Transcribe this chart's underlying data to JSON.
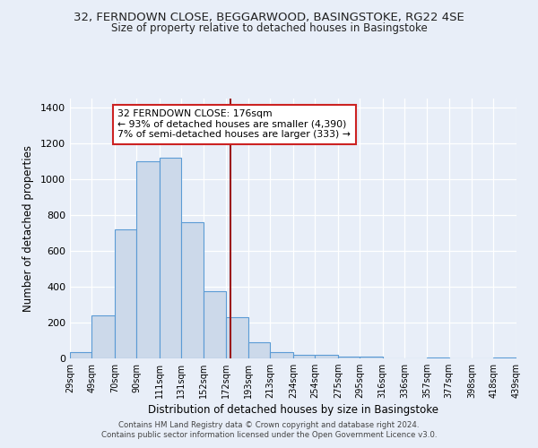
{
  "title_line1": "32, FERNDOWN CLOSE, BEGGARWOOD, BASINGSTOKE, RG22 4SE",
  "title_line2": "Size of property relative to detached houses in Basingstoke",
  "xlabel": "Distribution of detached houses by size in Basingstoke",
  "ylabel": "Number of detached properties",
  "bin_labels": [
    "29sqm",
    "49sqm",
    "70sqm",
    "90sqm",
    "111sqm",
    "131sqm",
    "152sqm",
    "172sqm",
    "193sqm",
    "213sqm",
    "234sqm",
    "254sqm",
    "275sqm",
    "295sqm",
    "316sqm",
    "336sqm",
    "357sqm",
    "377sqm",
    "398sqm",
    "418sqm",
    "439sqm"
  ],
  "bar_heights": [
    35,
    240,
    720,
    1100,
    1120,
    760,
    375,
    230,
    90,
    35,
    20,
    20,
    10,
    10,
    0,
    0,
    5,
    0,
    0,
    5
  ],
  "bar_color": "#ccd9ea",
  "bar_edge_color": "#5b9bd5",
  "vline_color": "#9b1a1a",
  "vline_x": 176,
  "bin_edges": [
    29,
    49,
    70,
    90,
    111,
    131,
    152,
    172,
    193,
    213,
    234,
    254,
    275,
    295,
    316,
    336,
    357,
    377,
    398,
    418,
    439
  ],
  "annotation_title": "32 FERNDOWN CLOSE: 176sqm",
  "annotation_line1": "← 93% of detached houses are smaller (4,390)",
  "annotation_line2": "7% of semi-detached houses are larger (333) →",
  "annotation_box_color": "#ffffff",
  "annotation_box_edge": "#cc2222",
  "ylim": [
    0,
    1450
  ],
  "yticks": [
    0,
    200,
    400,
    600,
    800,
    1000,
    1200,
    1400
  ],
  "footer_line1": "Contains HM Land Registry data © Crown copyright and database right 2024.",
  "footer_line2": "Contains public sector information licensed under the Open Government Licence v3.0.",
  "bg_color": "#e8eef8",
  "plot_bg_color": "#e8eef8",
  "grid_color": "#ffffff"
}
